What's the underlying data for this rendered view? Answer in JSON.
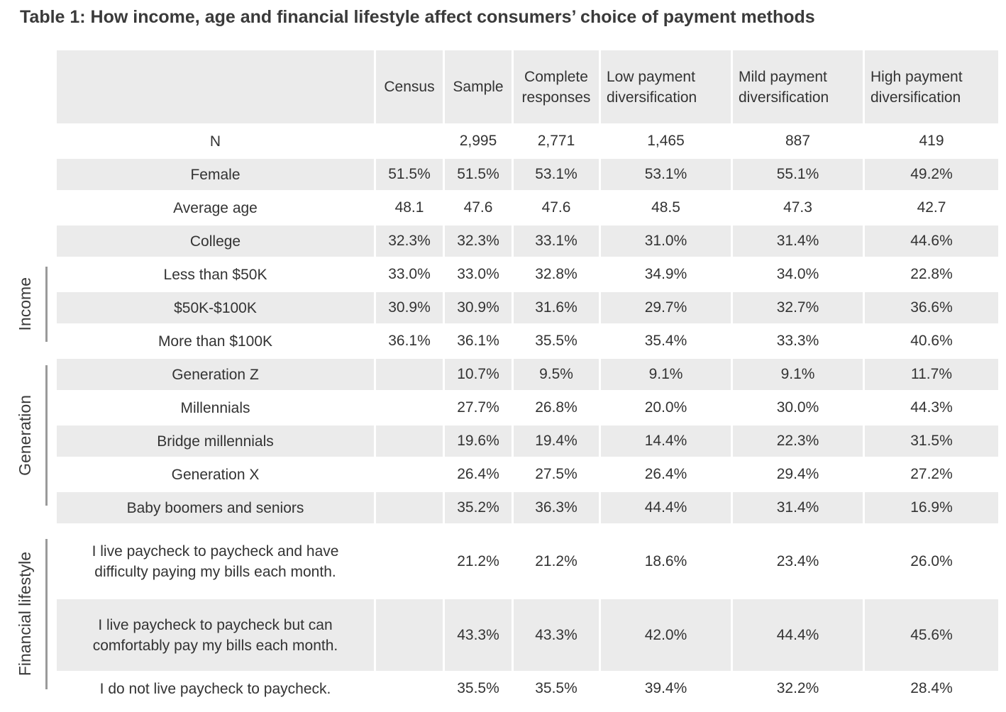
{
  "title": "Table 1: How income, age and financial lifestyle affect consumers’ choice of payment methods",
  "columns": [
    "",
    "Census",
    "Sample",
    "Complete responses",
    "Low payment diversification",
    "Mild payment diversification",
    "High payment diversification"
  ],
  "rows": [
    {
      "label": "N",
      "values": [
        "",
        "2,995",
        "2,771",
        "1,465",
        "887",
        "419"
      ]
    },
    {
      "label": "Female",
      "values": [
        "51.5%",
        "51.5%",
        "53.1%",
        "53.1%",
        "55.1%",
        "49.2%"
      ]
    },
    {
      "label": "Average age",
      "values": [
        "48.1",
        "47.6",
        "47.6",
        "48.5",
        "47.3",
        "42.7"
      ]
    },
    {
      "label": "College",
      "values": [
        "32.3%",
        "32.3%",
        "33.1%",
        "31.0%",
        "31.4%",
        "44.6%"
      ]
    },
    {
      "label": "Less than $50K",
      "values": [
        "33.0%",
        "33.0%",
        "32.8%",
        "34.9%",
        "34.0%",
        "22.8%"
      ]
    },
    {
      "label": "$50K-$100K",
      "values": [
        "30.9%",
        "30.9%",
        "31.6%",
        "29.7%",
        "32.7%",
        "36.6%"
      ]
    },
    {
      "label": "More than $100K",
      "values": [
        "36.1%",
        "36.1%",
        "35.5%",
        "35.4%",
        "33.3%",
        "40.6%"
      ]
    },
    {
      "label": "Generation Z",
      "values": [
        "",
        "10.7%",
        "9.5%",
        "9.1%",
        "9.1%",
        "11.7%"
      ]
    },
    {
      "label": "Millennials",
      "values": [
        "",
        "27.7%",
        "26.8%",
        "20.0%",
        "30.0%",
        "44.3%"
      ]
    },
    {
      "label": "Bridge millennials",
      "values": [
        "",
        "19.6%",
        "19.4%",
        "14.4%",
        "22.3%",
        "31.5%"
      ]
    },
    {
      "label": "Generation X",
      "values": [
        "",
        "26.4%",
        "27.5%",
        "26.4%",
        "29.4%",
        "27.2%"
      ]
    },
    {
      "label": "Baby boomers and seniors",
      "values": [
        "",
        "35.2%",
        "36.3%",
        "44.4%",
        "31.4%",
        "16.9%"
      ]
    },
    {
      "label": "I live paycheck to paycheck and have difficulty paying my bills each month.",
      "values": [
        "",
        "21.2%",
        "21.2%",
        "18.6%",
        "23.4%",
        "26.0%"
      ]
    },
    {
      "label": "I live paycheck to paycheck but can comfortably pay my bills each month.",
      "values": [
        "",
        "43.3%",
        "43.3%",
        "42.0%",
        "44.4%",
        "45.6%"
      ]
    },
    {
      "label": "I do not live paycheck to paycheck.",
      "values": [
        "",
        "35.5%",
        "35.5%",
        "39.4%",
        "32.2%",
        "28.4%"
      ]
    }
  ],
  "groups": [
    {
      "label": "Income"
    },
    {
      "label": "Generation"
    },
    {
      "label": "Financial lifestyle"
    }
  ]
}
